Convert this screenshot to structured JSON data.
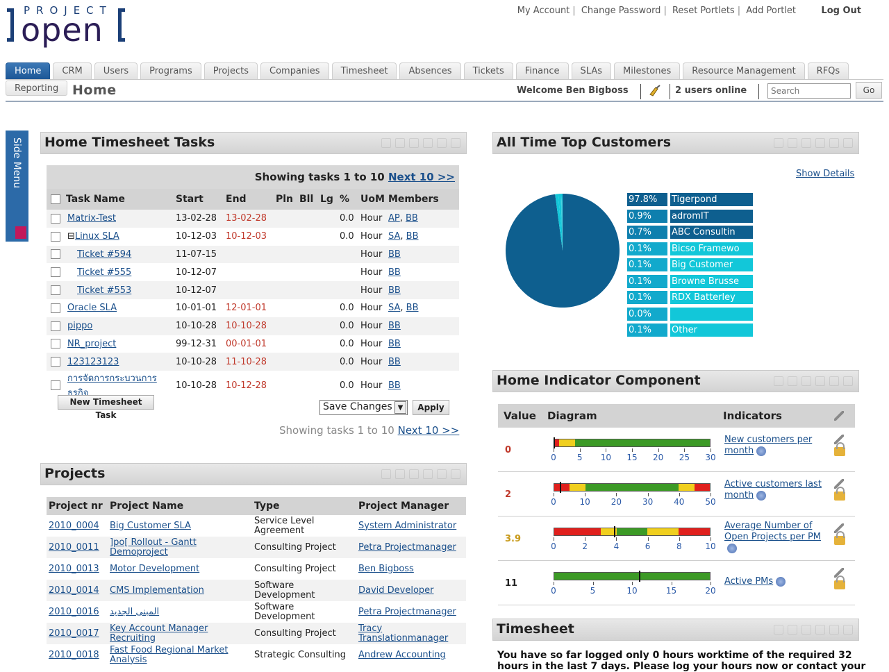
{
  "logo": {
    "top": "PROJECT",
    "main": "open"
  },
  "top_links": [
    "My Account",
    "Change Password",
    "Reset Portlets",
    "Add Portlet"
  ],
  "logout": "Log Out",
  "tabs": [
    "Home",
    "CRM",
    "Users",
    "Programs",
    "Projects",
    "Companies",
    "Timesheet",
    "Absences",
    "Tickets",
    "Finance",
    "SLAs",
    "Milestones",
    "Resource Management",
    "RFQs"
  ],
  "subtab": "Reporting",
  "page_title": "Home",
  "welcome": "Welcome Ben Bigboss",
  "users_online": "2 users online",
  "search": {
    "placeholder": "Search",
    "go": "Go"
  },
  "side_menu": "Side Menu",
  "tasks": {
    "title": "Home Timesheet Tasks",
    "showing_prefix": "Showing tasks 1 to 10",
    "next": "Next 10 >>",
    "columns": [
      "Task Name",
      "Start",
      "End",
      "Pln",
      "Bll",
      "Lg",
      "%",
      "UoM",
      "Members"
    ],
    "rows": [
      {
        "name": "Matrix-Test",
        "start": "13-02-28",
        "end": "13-02-28",
        "pct": "0.0",
        "uom": "Hour",
        "members": [
          "AP",
          "BB"
        ],
        "indent": 0,
        "tree": ""
      },
      {
        "name": "Linux SLA",
        "start": "10-12-03",
        "end": "10-12-03",
        "pct": "0.0",
        "uom": "Hour",
        "members": [
          "SA",
          "BB"
        ],
        "indent": 0,
        "tree": "⊟"
      },
      {
        "name": "Ticket #594",
        "start": "11-07-15",
        "end": "",
        "pct": "",
        "uom": "Hour",
        "members": [
          "BB"
        ],
        "indent": 1,
        "tree": ""
      },
      {
        "name": "Ticket #555",
        "start": "10-12-07",
        "end": "",
        "pct": "",
        "uom": "Hour",
        "members": [
          "BB"
        ],
        "indent": 1,
        "tree": ""
      },
      {
        "name": "Ticket #553",
        "start": "10-12-07",
        "end": "",
        "pct": "",
        "uom": "Hour",
        "members": [
          "BB"
        ],
        "indent": 1,
        "tree": ""
      },
      {
        "name": "Oracle SLA",
        "start": "10-01-01",
        "end": "12-01-01",
        "pct": "0.0",
        "uom": "Hour",
        "members": [
          "SA",
          "BB"
        ],
        "indent": 0,
        "tree": ""
      },
      {
        "name": "pippo",
        "start": "10-10-28",
        "end": "10-10-28",
        "pct": "0.0",
        "uom": "Hour",
        "members": [
          "BB"
        ],
        "indent": 0,
        "tree": ""
      },
      {
        "name": "NR_project",
        "start": "99-12-31",
        "end": "00-01-01",
        "pct": "0.0",
        "uom": "Hour",
        "members": [
          "BB"
        ],
        "indent": 0,
        "tree": ""
      },
      {
        "name": "123123123",
        "start": "10-10-28",
        "end": "11-10-28",
        "pct": "0.0",
        "uom": "Hour",
        "members": [
          "BB"
        ],
        "indent": 0,
        "tree": ""
      },
      {
        "name": "การจัดการกระบวนการธุรกิจ",
        "start": "10-10-28",
        "end": "10-12-28",
        "pct": "0.0",
        "uom": "Hour",
        "members": [
          "BB"
        ],
        "indent": 0,
        "tree": ""
      }
    ],
    "new_task_button": "New Timesheet Task",
    "save_select": "Save Changes",
    "apply": "Apply"
  },
  "projects": {
    "title": "Projects",
    "columns": [
      "Project nr",
      "Project Name",
      "Type",
      "Project Manager"
    ],
    "rows": [
      {
        "nr": "2010_0004",
        "name": "Big Customer SLA",
        "type": "Service Level Agreement",
        "pm": "System Administrator"
      },
      {
        "nr": "2010_0011",
        "name": "]po[ Rollout - Gantt Demoproject",
        "type": "Consulting Project",
        "pm": "Petra Projectmanager"
      },
      {
        "nr": "2010_0013",
        "name": "Motor Development",
        "type": "Consulting Project",
        "pm": "Ben Bigboss"
      },
      {
        "nr": "2010_0014",
        "name": "CMS Implementation",
        "type": "Software Development",
        "pm": "David Developer"
      },
      {
        "nr": "2010_0016",
        "name": "المبنى الجديد",
        "type": "Software Development",
        "pm": "Petra Projectmanager"
      },
      {
        "nr": "2010_0017",
        "name": "Key Account Manager Recruiting",
        "type": "Consulting Project",
        "pm": "Tracy Translationmanager"
      },
      {
        "nr": "2010_0018",
        "name": "Fast Food Regional Market Analysis",
        "type": "Strategic Consulting",
        "pm": "Andrew Accounting"
      }
    ]
  },
  "customers": {
    "title": "All Time Top Customers",
    "show_details": "Show Details",
    "colors": {
      "dark": "#0e5f8f",
      "light": "#12c7d9"
    },
    "items": [
      {
        "pct": "97.8%",
        "name": "Tigerpond",
        "value": 97.8
      },
      {
        "pct": "0.9%",
        "name": "adromIT",
        "value": 0.9
      },
      {
        "pct": "0.7%",
        "name": "ABC Consultin",
        "value": 0.7
      },
      {
        "pct": "0.1%",
        "name": "Bicso Framewo",
        "value": 0.1
      },
      {
        "pct": "0.1%",
        "name": "Big Customer",
        "value": 0.1
      },
      {
        "pct": "0.1%",
        "name": "Browne Brusse",
        "value": 0.1
      },
      {
        "pct": "0.1%",
        "name": "RDX Batterley",
        "value": 0.1
      },
      {
        "pct": "0.0%",
        "name": "",
        "value": 0.0
      },
      {
        "pct": "0.1%",
        "name": "Other",
        "value": 0.1
      }
    ]
  },
  "indicators": {
    "title": "Home Indicator Component",
    "columns": [
      "Value",
      "Diagram",
      "Indicators"
    ],
    "rows": [
      {
        "value": "0",
        "value_color": "#c0392b",
        "label": "New customers per month",
        "max": 30,
        "ticks": [
          0,
          5,
          10,
          15,
          20,
          25,
          30
        ],
        "needle": 0,
        "segments": [
          {
            "from": 0,
            "to": 1,
            "color": "red"
          },
          {
            "from": 1,
            "to": 4,
            "color": "yellow"
          },
          {
            "from": 4,
            "to": 30,
            "color": "green"
          }
        ]
      },
      {
        "value": "2",
        "value_color": "#c0392b",
        "label": "Active customers last month",
        "max": 50,
        "ticks": [
          0,
          10,
          20,
          30,
          40,
          50
        ],
        "needle": 2,
        "segments": [
          {
            "from": 0,
            "to": 5,
            "color": "red"
          },
          {
            "from": 5,
            "to": 10,
            "color": "yellow"
          },
          {
            "from": 10,
            "to": 40,
            "color": "green"
          },
          {
            "from": 40,
            "to": 45,
            "color": "yellow"
          },
          {
            "from": 45,
            "to": 50,
            "color": "red"
          }
        ]
      },
      {
        "value": "3.9",
        "value_color": "#c89a1a",
        "label": "Average Number of Open Projects per PM",
        "max": 10,
        "ticks": [
          0,
          2,
          4,
          6,
          8,
          10
        ],
        "needle": 3.9,
        "segments": [
          {
            "from": 0,
            "to": 3,
            "color": "red"
          },
          {
            "from": 3,
            "to": 4,
            "color": "yellow"
          },
          {
            "from": 4,
            "to": 6,
            "color": "green"
          },
          {
            "from": 6,
            "to": 8,
            "color": "yellow"
          },
          {
            "from": 8,
            "to": 10,
            "color": "red"
          }
        ]
      },
      {
        "value": "11",
        "value_color": "#222222",
        "label": "Active PMs",
        "max": 20,
        "ticks": [
          0,
          5,
          10,
          15,
          20
        ],
        "needle": 11,
        "segments": [
          {
            "from": 0,
            "to": 20,
            "color": "green"
          }
        ]
      }
    ]
  },
  "timesheet": {
    "title": "Timesheet",
    "text": "You have so far logged only 0 hours worktime of the required 32 hours in the last 7 days. Please log your hours now or contact your"
  }
}
